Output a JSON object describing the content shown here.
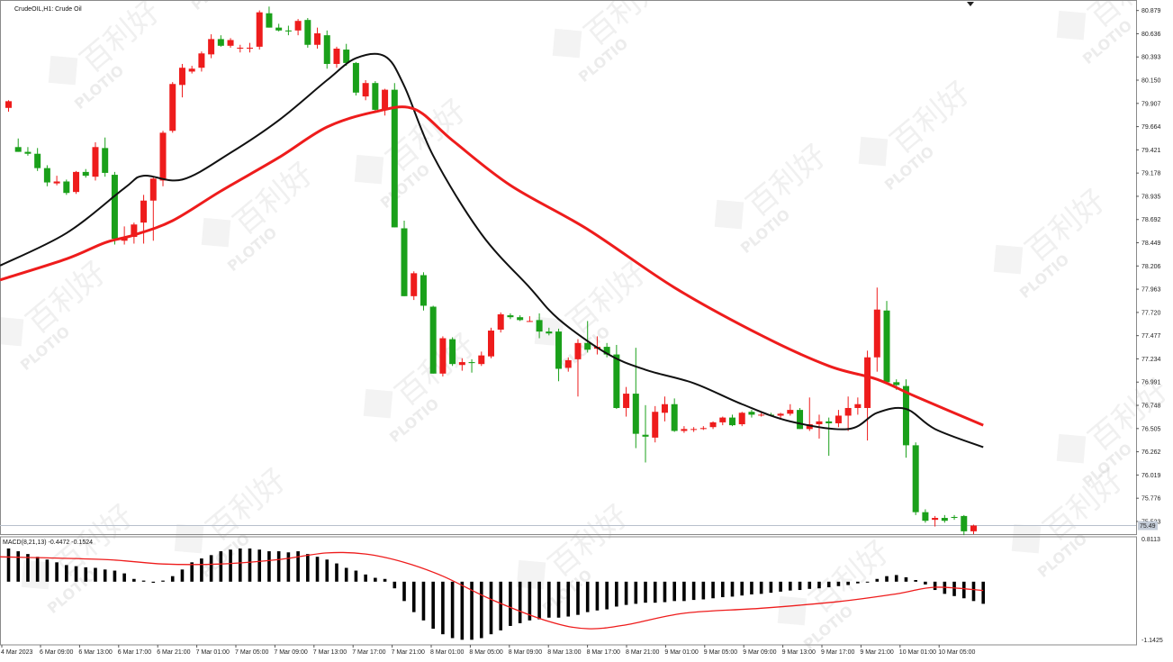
{
  "chart_data": {
    "type": "candlestick",
    "symbol_label": "CrudeOIL,H1:  Crude Oil",
    "price_axis": {
      "ylim": [
        75.41,
        80.97
      ],
      "ticks": [
        "80.879",
        "80.636",
        "80.393",
        "80.150",
        "79.907",
        "79.664",
        "79.421",
        "79.178",
        "78.935",
        "78.692",
        "78.449",
        "78.206",
        "77.963",
        "77.720",
        "77.477",
        "77.234",
        "76.991",
        "76.748",
        "76.505",
        "76.262",
        "76.019",
        "75.776",
        "75.533"
      ],
      "current_price": 75.49,
      "current_price_label": "75.49"
    },
    "time_axis": {
      "labels": [
        "4 Mar 2023",
        "6 Mar 09:00",
        "6 Mar 13:00",
        "6 Mar 17:00",
        "6 Mar 21:00",
        "7 Mar 01:00",
        "7 Mar 05:00",
        "7 Mar 09:00",
        "7 Mar 13:00",
        "7 Mar 17:00",
        "7 Mar 21:00",
        "8 Mar 01:00",
        "8 Mar 05:00",
        "8 Mar 09:00",
        "8 Mar 13:00",
        "8 Mar 17:00",
        "8 Mar 21:00",
        "9 Mar 01:00",
        "9 Mar 05:00",
        "9 Mar 09:00",
        "9 Mar 13:00",
        "9 Mar 17:00",
        "9 Mar 21:00",
        "10 Mar 01:00",
        "10 Mar 05:00"
      ]
    },
    "candles": [
      {
        "o": 79.86,
        "h": 79.94,
        "l": 79.82,
        "c": 79.93
      },
      {
        "o": 79.45,
        "h": 79.54,
        "l": 79.4,
        "c": 79.4
      },
      {
        "o": 79.4,
        "h": 79.45,
        "l": 79.36,
        "c": 79.38
      },
      {
        "o": 79.38,
        "h": 79.44,
        "l": 79.2,
        "c": 79.23
      },
      {
        "o": 79.23,
        "h": 79.26,
        "l": 79.04,
        "c": 79.08
      },
      {
        "o": 79.07,
        "h": 79.15,
        "l": 79.05,
        "c": 79.09
      },
      {
        "o": 79.09,
        "h": 79.11,
        "l": 78.95,
        "c": 78.97
      },
      {
        "o": 78.98,
        "h": 79.2,
        "l": 78.96,
        "c": 79.19
      },
      {
        "o": 79.19,
        "h": 79.22,
        "l": 79.13,
        "c": 79.15
      },
      {
        "o": 79.14,
        "h": 79.5,
        "l": 79.1,
        "c": 79.45
      },
      {
        "o": 79.44,
        "h": 79.55,
        "l": 79.14,
        "c": 79.18
      },
      {
        "o": 79.16,
        "h": 79.19,
        "l": 78.43,
        "c": 78.49
      },
      {
        "o": 78.47,
        "h": 78.62,
        "l": 78.43,
        "c": 78.5
      },
      {
        "o": 78.51,
        "h": 78.66,
        "l": 78.44,
        "c": 78.64
      },
      {
        "o": 78.66,
        "h": 78.95,
        "l": 78.44,
        "c": 78.89
      },
      {
        "o": 78.89,
        "h": 79.14,
        "l": 78.47,
        "c": 79.12
      },
      {
        "o": 79.1,
        "h": 79.62,
        "l": 79.04,
        "c": 79.6
      },
      {
        "o": 79.62,
        "h": 80.13,
        "l": 79.6,
        "c": 80.11
      },
      {
        "o": 80.1,
        "h": 80.32,
        "l": 79.97,
        "c": 80.28
      },
      {
        "o": 80.24,
        "h": 80.3,
        "l": 80.22,
        "c": 80.27
      },
      {
        "o": 80.28,
        "h": 80.45,
        "l": 80.24,
        "c": 80.43
      },
      {
        "o": 80.42,
        "h": 80.63,
        "l": 80.38,
        "c": 80.58
      },
      {
        "o": 80.58,
        "h": 80.62,
        "l": 80.5,
        "c": 80.51
      },
      {
        "o": 80.51,
        "h": 80.59,
        "l": 80.49,
        "c": 80.57
      },
      {
        "o": 80.48,
        "h": 80.52,
        "l": 80.44,
        "c": 80.49
      },
      {
        "o": 80.48,
        "h": 80.54,
        "l": 80.44,
        "c": 80.49
      },
      {
        "o": 80.5,
        "h": 80.88,
        "l": 80.47,
        "c": 80.86
      },
      {
        "o": 80.85,
        "h": 80.92,
        "l": 80.7,
        "c": 80.7
      },
      {
        "o": 80.7,
        "h": 80.74,
        "l": 80.66,
        "c": 80.67
      },
      {
        "o": 80.67,
        "h": 80.72,
        "l": 80.62,
        "c": 80.66
      },
      {
        "o": 80.67,
        "h": 80.79,
        "l": 80.62,
        "c": 80.77
      },
      {
        "o": 80.78,
        "h": 80.8,
        "l": 80.49,
        "c": 80.52
      },
      {
        "o": 80.52,
        "h": 80.7,
        "l": 80.48,
        "c": 80.64
      },
      {
        "o": 80.62,
        "h": 80.67,
        "l": 80.27,
        "c": 80.32
      },
      {
        "o": 80.32,
        "h": 80.5,
        "l": 80.28,
        "c": 80.48
      },
      {
        "o": 80.47,
        "h": 80.53,
        "l": 80.3,
        "c": 80.33
      },
      {
        "o": 80.33,
        "h": 80.34,
        "l": 79.99,
        "c": 80.02
      },
      {
        "o": 79.98,
        "h": 80.15,
        "l": 79.94,
        "c": 80.12
      },
      {
        "o": 80.12,
        "h": 80.14,
        "l": 79.81,
        "c": 79.84
      },
      {
        "o": 79.84,
        "h": 80.06,
        "l": 79.78,
        "c": 80.05
      },
      {
        "o": 80.05,
        "h": 80.12,
        "l": 78.61,
        "c": 78.61
      },
      {
        "o": 78.6,
        "h": 78.68,
        "l": 77.89,
        "c": 77.89
      },
      {
        "o": 77.89,
        "h": 78.15,
        "l": 77.85,
        "c": 78.13
      },
      {
        "o": 78.11,
        "h": 78.14,
        "l": 77.74,
        "c": 77.79
      },
      {
        "o": 77.78,
        "h": 77.79,
        "l": 77.08,
        "c": 77.08
      },
      {
        "o": 77.08,
        "h": 77.47,
        "l": 77.05,
        "c": 77.45
      },
      {
        "o": 77.44,
        "h": 77.46,
        "l": 77.16,
        "c": 77.18
      },
      {
        "o": 77.17,
        "h": 77.24,
        "l": 77.11,
        "c": 77.2
      },
      {
        "o": 77.2,
        "h": 77.23,
        "l": 77.09,
        "c": 77.19
      },
      {
        "o": 77.18,
        "h": 77.31,
        "l": 77.16,
        "c": 77.27
      },
      {
        "o": 77.26,
        "h": 77.56,
        "l": 77.24,
        "c": 77.53
      },
      {
        "o": 77.54,
        "h": 77.72,
        "l": 77.51,
        "c": 77.7
      },
      {
        "o": 77.69,
        "h": 77.71,
        "l": 77.65,
        "c": 77.67
      },
      {
        "o": 77.67,
        "h": 77.69,
        "l": 77.63,
        "c": 77.64
      },
      {
        "o": 77.63,
        "h": 77.68,
        "l": 77.62,
        "c": 77.63
      },
      {
        "o": 77.64,
        "h": 77.71,
        "l": 77.45,
        "c": 77.52
      },
      {
        "o": 77.52,
        "h": 77.56,
        "l": 77.48,
        "c": 77.5
      },
      {
        "o": 77.52,
        "h": 77.55,
        "l": 77.0,
        "c": 77.13
      },
      {
        "o": 77.14,
        "h": 77.25,
        "l": 77.1,
        "c": 77.22
      },
      {
        "o": 77.23,
        "h": 77.44,
        "l": 76.84,
        "c": 77.4
      },
      {
        "o": 77.4,
        "h": 77.63,
        "l": 77.3,
        "c": 77.33
      },
      {
        "o": 77.34,
        "h": 77.47,
        "l": 77.28,
        "c": 77.36
      },
      {
        "o": 77.36,
        "h": 77.4,
        "l": 77.25,
        "c": 77.28
      },
      {
        "o": 77.28,
        "h": 77.38,
        "l": 76.71,
        "c": 76.72
      },
      {
        "o": 76.72,
        "h": 76.94,
        "l": 76.63,
        "c": 76.87
      },
      {
        "o": 76.87,
        "h": 77.35,
        "l": 76.3,
        "c": 76.45
      },
      {
        "o": 76.44,
        "h": 76.75,
        "l": 76.15,
        "c": 76.42
      },
      {
        "o": 76.41,
        "h": 76.74,
        "l": 76.36,
        "c": 76.68
      },
      {
        "o": 76.67,
        "h": 76.84,
        "l": 76.58,
        "c": 76.76
      },
      {
        "o": 76.76,
        "h": 76.82,
        "l": 76.47,
        "c": 76.48
      },
      {
        "o": 76.48,
        "h": 76.53,
        "l": 76.46,
        "c": 76.5
      },
      {
        "o": 76.5,
        "h": 76.52,
        "l": 76.47,
        "c": 76.5
      },
      {
        "o": 76.5,
        "h": 76.53,
        "l": 76.49,
        "c": 76.51
      },
      {
        "o": 76.52,
        "h": 76.58,
        "l": 76.5,
        "c": 76.57
      },
      {
        "o": 76.57,
        "h": 76.63,
        "l": 76.54,
        "c": 76.62
      },
      {
        "o": 76.62,
        "h": 76.65,
        "l": 76.53,
        "c": 76.54
      },
      {
        "o": 76.55,
        "h": 76.68,
        "l": 76.53,
        "c": 76.67
      },
      {
        "o": 76.68,
        "h": 76.7,
        "l": 76.62,
        "c": 76.65
      },
      {
        "o": 76.65,
        "h": 76.68,
        "l": 76.63,
        "c": 76.65
      },
      {
        "o": 76.65,
        "h": 76.67,
        "l": 76.63,
        "c": 76.64
      },
      {
        "o": 76.64,
        "h": 76.67,
        "l": 76.6,
        "c": 76.66
      },
      {
        "o": 76.66,
        "h": 76.76,
        "l": 76.64,
        "c": 76.7
      },
      {
        "o": 76.7,
        "h": 76.72,
        "l": 76.5,
        "c": 76.5
      },
      {
        "o": 76.5,
        "h": 76.83,
        "l": 76.48,
        "c": 76.55
      },
      {
        "o": 76.55,
        "h": 76.65,
        "l": 76.4,
        "c": 76.58
      },
      {
        "o": 76.58,
        "h": 76.62,
        "l": 76.22,
        "c": 76.56
      },
      {
        "o": 76.56,
        "h": 76.7,
        "l": 76.52,
        "c": 76.64
      },
      {
        "o": 76.64,
        "h": 76.84,
        "l": 76.48,
        "c": 76.72
      },
      {
        "o": 76.72,
        "h": 76.83,
        "l": 76.65,
        "c": 76.76
      },
      {
        "o": 76.72,
        "h": 77.32,
        "l": 76.38,
        "c": 77.25
      },
      {
        "o": 77.25,
        "h": 77.98,
        "l": 77.1,
        "c": 77.75
      },
      {
        "o": 77.74,
        "h": 77.84,
        "l": 76.99,
        "c": 76.99
      },
      {
        "o": 76.99,
        "h": 77.02,
        "l": 76.91,
        "c": 76.96
      },
      {
        "o": 76.95,
        "h": 77.02,
        "l": 76.2,
        "c": 76.33
      },
      {
        "o": 76.33,
        "h": 76.36,
        "l": 75.6,
        "c": 75.63
      },
      {
        "o": 75.63,
        "h": 75.66,
        "l": 75.52,
        "c": 75.54
      },
      {
        "o": 75.55,
        "h": 75.59,
        "l": 75.48,
        "c": 75.57
      },
      {
        "o": 75.57,
        "h": 75.6,
        "l": 75.52,
        "c": 75.54
      },
      {
        "o": 75.58,
        "h": 75.6,
        "l": 75.55,
        "c": 75.57
      },
      {
        "o": 75.59,
        "h": 75.6,
        "l": 75.39,
        "c": 75.43
      },
      {
        "o": 75.43,
        "h": 75.5,
        "l": 75.4,
        "c": 75.49
      }
    ],
    "moving_averages": [
      {
        "color": "#111111",
        "points": [
          [
            0,
            78.21
          ],
          [
            6,
            78.55
          ],
          [
            12,
            79.02
          ],
          [
            14,
            79.15
          ],
          [
            18,
            79.11
          ],
          [
            23,
            79.39
          ],
          [
            28,
            79.73
          ],
          [
            33,
            80.15
          ],
          [
            36,
            80.38
          ],
          [
            39,
            80.4
          ],
          [
            41,
            80.09
          ],
          [
            44,
            79.36
          ],
          [
            49,
            78.54
          ],
          [
            54,
            77.98
          ],
          [
            57,
            77.65
          ],
          [
            62,
            77.29
          ],
          [
            66,
            77.12
          ],
          [
            71,
            76.98
          ],
          [
            76,
            76.76
          ],
          [
            81,
            76.58
          ],
          [
            87,
            76.5
          ],
          [
            90,
            76.67
          ],
          [
            93,
            76.71
          ],
          [
            96,
            76.5
          ],
          [
            101,
            76.31
          ]
        ]
      },
      {
        "color": "#ee1c1c",
        "points": [
          [
            0,
            78.06
          ],
          [
            6,
            78.28
          ],
          [
            10,
            78.45
          ],
          [
            13,
            78.53
          ],
          [
            17,
            78.68
          ],
          [
            22,
            78.99
          ],
          [
            28,
            79.34
          ],
          [
            33,
            79.66
          ],
          [
            38,
            79.82
          ],
          [
            42,
            79.85
          ],
          [
            46,
            79.52
          ],
          [
            52,
            79.05
          ],
          [
            60,
            78.59
          ],
          [
            69,
            77.98
          ],
          [
            78,
            77.48
          ],
          [
            85,
            77.16
          ],
          [
            90,
            77.02
          ],
          [
            94,
            76.84
          ],
          [
            101,
            76.54
          ]
        ]
      }
    ],
    "macd": {
      "label": "MACD(8,21,13) -0.4472 -0.1524",
      "ylim": [
        -1.1425,
        0.8113
      ],
      "ticks": [
        "0.8113",
        "-1.1425"
      ],
      "histogram": [
        0.6,
        0.55,
        0.5,
        0.45,
        0.4,
        0.35,
        0.3,
        0.28,
        0.26,
        0.25,
        0.22,
        0.2,
        0.15,
        0.05,
        0.02,
        -0.02,
        0.02,
        0.1,
        0.22,
        0.35,
        0.42,
        0.48,
        0.55,
        0.58,
        0.6,
        0.6,
        0.58,
        0.55,
        0.55,
        0.53,
        0.55,
        0.5,
        0.45,
        0.4,
        0.33,
        0.25,
        0.2,
        0.13,
        0.07,
        0.05,
        -0.12,
        -0.35,
        -0.55,
        -0.7,
        -0.85,
        -0.95,
        -1.02,
        -1.05,
        -1.05,
        -1.02,
        -0.95,
        -0.88,
        -0.8,
        -0.75,
        -0.7,
        -0.68,
        -0.65,
        -0.65,
        -0.63,
        -0.6,
        -0.55,
        -0.52,
        -0.5,
        -0.45,
        -0.42,
        -0.4,
        -0.38,
        -0.38,
        -0.37,
        -0.35,
        -0.35,
        -0.33,
        -0.32,
        -0.3,
        -0.28,
        -0.27,
        -0.25,
        -0.23,
        -0.22,
        -0.2,
        -0.18,
        -0.16,
        -0.15,
        -0.13,
        -0.12,
        -0.1,
        -0.08,
        -0.06,
        -0.03,
        0.0,
        0.05,
        0.1,
        0.12,
        0.08,
        0.03,
        -0.05,
        -0.15,
        -0.22,
        -0.26,
        -0.3,
        -0.35,
        -0.4
      ],
      "signal_color": "#ee1c1c",
      "signal": [
        [
          0,
          0.45
        ],
        [
          10,
          0.4
        ],
        [
          16,
          0.32
        ],
        [
          22,
          0.32
        ],
        [
          28,
          0.4
        ],
        [
          33,
          0.52
        ],
        [
          37,
          0.5
        ],
        [
          41,
          0.35
        ],
        [
          45,
          0.1
        ],
        [
          50,
          -0.32
        ],
        [
          56,
          -0.72
        ],
        [
          60,
          -0.85
        ],
        [
          64,
          -0.78
        ],
        [
          70,
          -0.57
        ],
        [
          78,
          -0.48
        ],
        [
          86,
          -0.36
        ],
        [
          92,
          -0.22
        ],
        [
          96,
          -0.1
        ],
        [
          101,
          -0.16
        ]
      ]
    },
    "watermark": {
      "text": "百利好",
      "brand": "PLOTIO"
    }
  }
}
